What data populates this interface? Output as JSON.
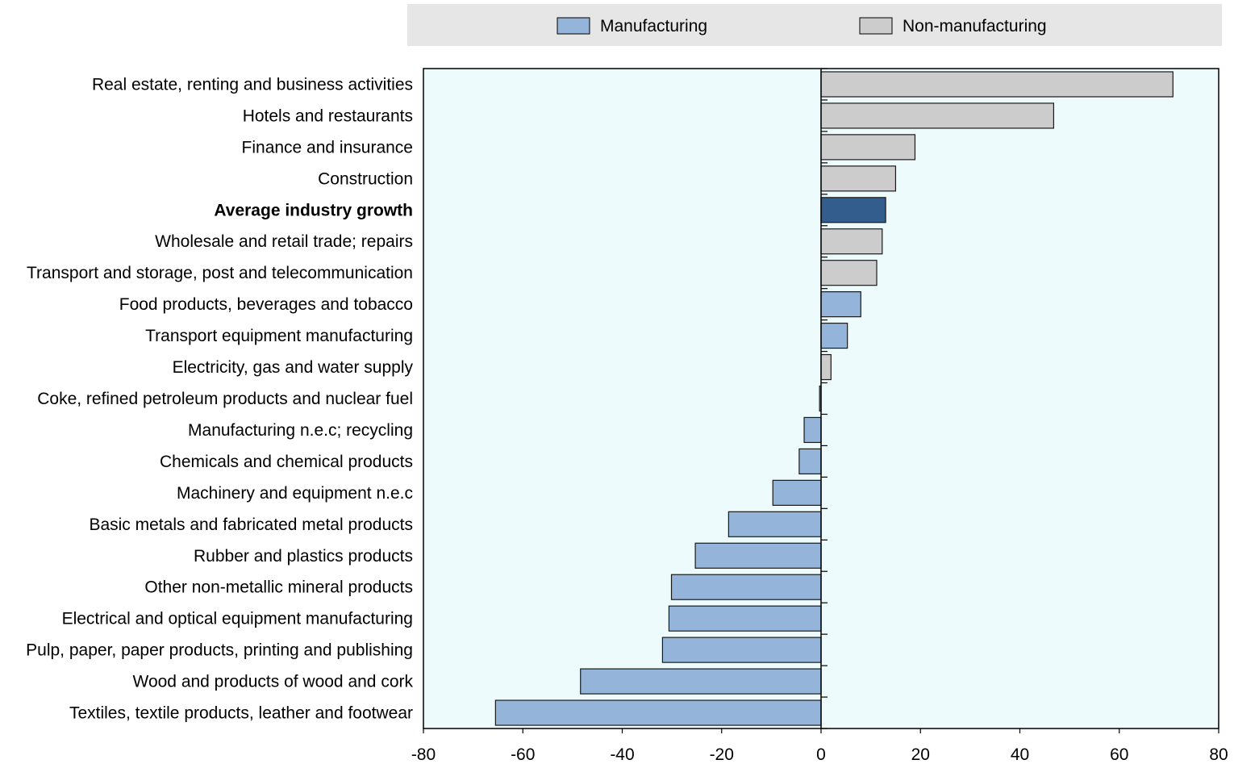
{
  "chart_data": {
    "type": "bar",
    "orientation": "horizontal",
    "categories": [
      "Real estate, renting and business activities",
      "Hotels and restaurants",
      "Finance and insurance",
      "Construction",
      "Average industry growth",
      "Wholesale and retail trade; repairs",
      "Transport and storage, post and telecommunication",
      "Food products, beverages and tobacco",
      "Transport equipment manufacturing",
      "Electricity, gas and water supply",
      "Coke, refined petroleum products and nuclear fuel",
      "Manufacturing n.e.c; recycling",
      "Chemicals and chemical products",
      "Machinery and equipment n.e.c",
      "Basic metals and fabricated metal products",
      "Rubber and plastics products",
      "Other non-metallic mineral products",
      "Electrical and optical equipment manufacturing",
      "Pulp, paper, paper products, printing and publishing",
      "Wood and products of wood and cork",
      "Textiles, textile products, leather and footwear"
    ],
    "values": [
      70.8,
      46.8,
      18.9,
      15.0,
      13.0,
      12.3,
      11.2,
      8.0,
      5.3,
      2.0,
      -0.3,
      -3.4,
      -4.4,
      -9.7,
      -18.6,
      -25.3,
      -30.1,
      -30.6,
      -31.9,
      -48.4,
      -65.5
    ],
    "groups": [
      "Non-manufacturing",
      "Non-manufacturing",
      "Non-manufacturing",
      "Non-manufacturing",
      "Average",
      "Non-manufacturing",
      "Non-manufacturing",
      "Manufacturing",
      "Manufacturing",
      "Non-manufacturing",
      "Manufacturing",
      "Manufacturing",
      "Manufacturing",
      "Manufacturing",
      "Manufacturing",
      "Manufacturing",
      "Manufacturing",
      "Manufacturing",
      "Manufacturing",
      "Manufacturing",
      "Manufacturing"
    ],
    "highlight_category": "Average industry growth",
    "xlim": [
      -80,
      80
    ],
    "xticks": [
      "-80",
      "-60",
      "-40",
      "-20",
      "0",
      "20",
      "40",
      "60",
      "80"
    ],
    "legend": {
      "placement": "top",
      "entries": [
        {
          "label": "Manufacturing",
          "color": "#94b4d9"
        },
        {
          "label": "Non-manufacturing",
          "color": "#cccccc"
        }
      ]
    },
    "colors": {
      "Manufacturing": "#94b4d9",
      "Non-manufacturing": "#cccccc",
      "Average": "#335d8d",
      "plot_background": "#eefbfc",
      "legend_background": "#e6e6e6"
    },
    "grid": false
  }
}
